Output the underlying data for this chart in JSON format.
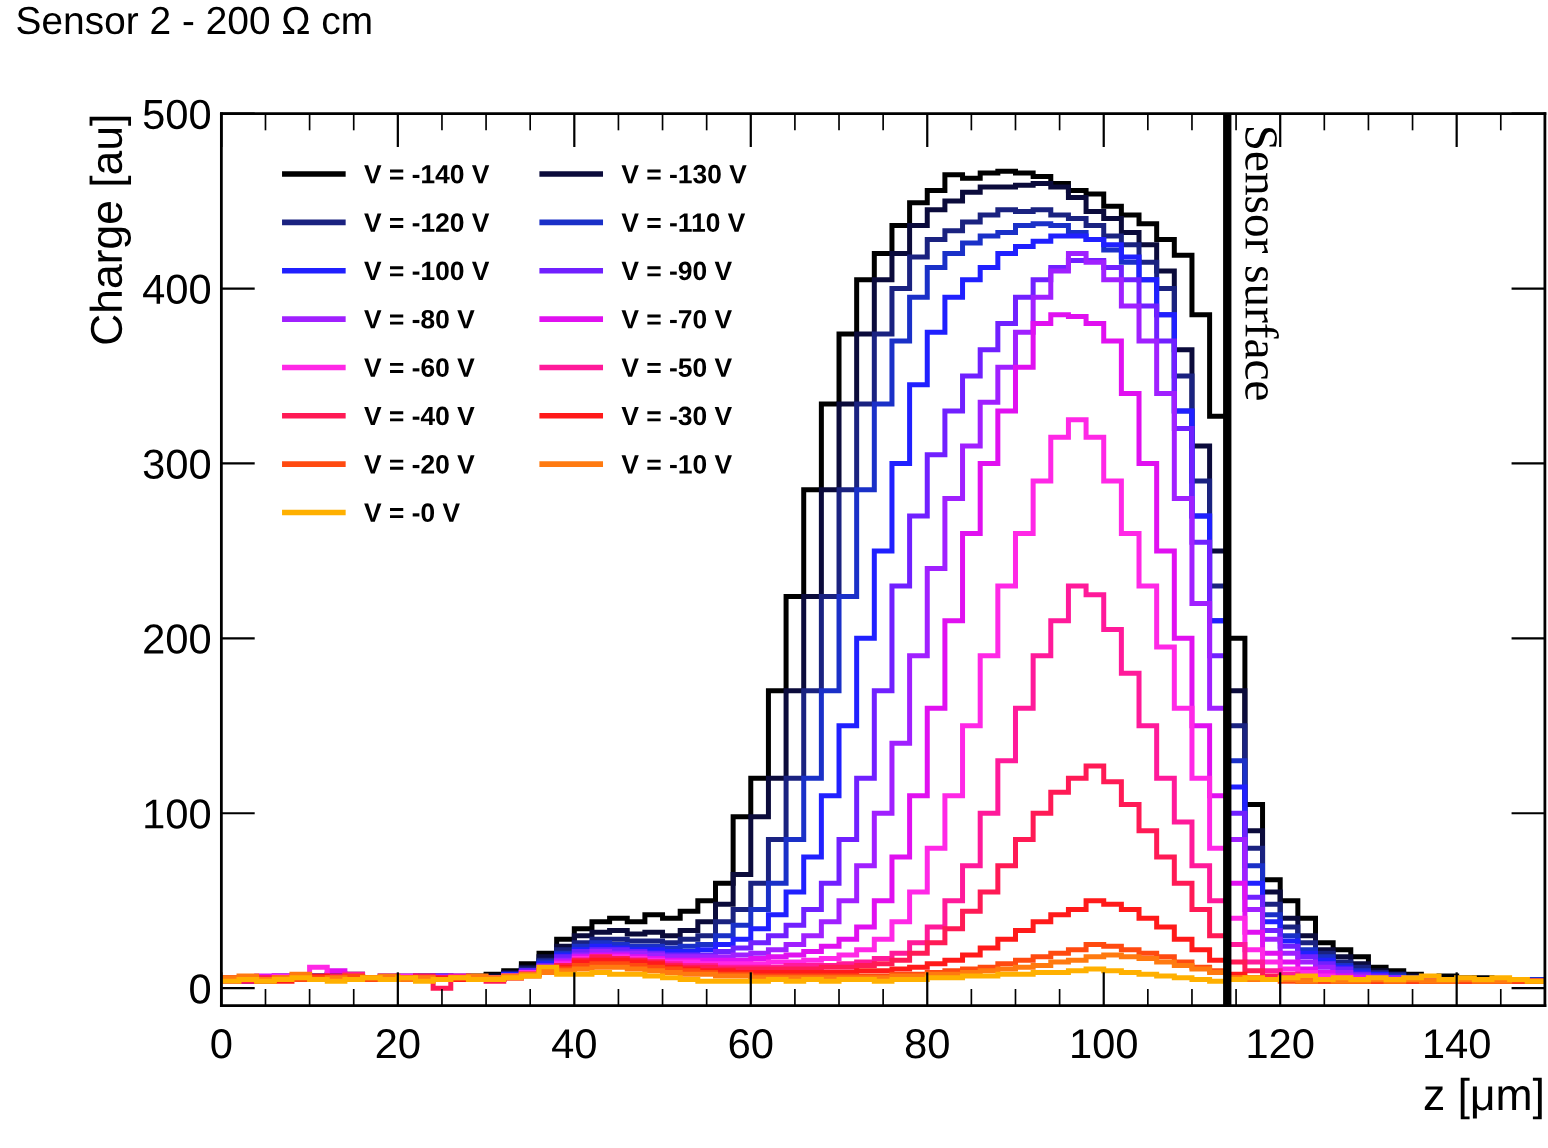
{
  "chart_data": {
    "type": "histogram",
    "title": "Sensor 2 - 200 Ω cm",
    "xlabel": "z [μm]",
    "ylabel": "Charge [au]",
    "bins": [
      0,
      2,
      4,
      6,
      8,
      10,
      12,
      14,
      16,
      18,
      20,
      22,
      24,
      26,
      28,
      30,
      32,
      34,
      36,
      38,
      40,
      42,
      44,
      46,
      48,
      50,
      52,
      54,
      56,
      58,
      60,
      62,
      64,
      66,
      68,
      70,
      72,
      74,
      76,
      78,
      80,
      82,
      84,
      86,
      88,
      90,
      92,
      94,
      96,
      98,
      100,
      102,
      104,
      106,
      108,
      110,
      112,
      114,
      116,
      118,
      120,
      122,
      124,
      126,
      128,
      130,
      132,
      134,
      136,
      138,
      140,
      142,
      144,
      146,
      148,
      150
    ],
    "xlim": [
      0,
      150
    ],
    "ylim": [
      -10,
      500
    ],
    "xticks": [
      0,
      20,
      40,
      60,
      80,
      100,
      120,
      140
    ],
    "yticks": [
      0,
      100,
      200,
      300,
      400,
      500
    ],
    "grid": false,
    "legend": "top left",
    "ref_lines": [
      {
        "axis": "x",
        "value": 114,
        "label": "Sensor surface",
        "color": "#000000"
      }
    ],
    "series": [
      {
        "name": "V = -140 V",
        "color": "#000000",
        "values": [
          4,
          5,
          6,
          5,
          7,
          6,
          8,
          7,
          6,
          5,
          6,
          7,
          5,
          6,
          7,
          8,
          10,
          14,
          20,
          28,
          34,
          38,
          40,
          38,
          42,
          40,
          44,
          50,
          60,
          98,
          120,
          170,
          224,
          285,
          334,
          374,
          405,
          420,
          436,
          449,
          456,
          465,
          463,
          466,
          467,
          466,
          464,
          460,
          456,
          454,
          447,
          442,
          437,
          428,
          419,
          385,
          327,
          200,
          105,
          62,
          50,
          40,
          26,
          22,
          18,
          12,
          10,
          8,
          6,
          7,
          5,
          6,
          4,
          5,
          4
        ]
      },
      {
        "name": "V = -130 V",
        "color": "#0b0b3b",
        "values": [
          5,
          4,
          6,
          6,
          5,
          7,
          6,
          8,
          5,
          6,
          5,
          6,
          7,
          5,
          6,
          7,
          9,
          12,
          18,
          24,
          30,
          32,
          33,
          31,
          32,
          30,
          33,
          38,
          48,
          65,
          98,
          120,
          170,
          224,
          285,
          334,
          374,
          405,
          420,
          436,
          445,
          450,
          455,
          458,
          458,
          459,
          460,
          458,
          452,
          444,
          440,
          432,
          425,
          410,
          365,
          310,
          250,
          170,
          90,
          55,
          40,
          30,
          22,
          18,
          14,
          10,
          8,
          7,
          6,
          5,
          6,
          4,
          5,
          4,
          5
        ]
      },
      {
        "name": "V = -120 V",
        "color": "#1a2280",
        "values": [
          4,
          6,
          5,
          7,
          5,
          6,
          7,
          6,
          6,
          5,
          7,
          5,
          6,
          6,
          5,
          6,
          8,
          11,
          16,
          22,
          26,
          28,
          28,
          27,
          27,
          26,
          28,
          30,
          38,
          45,
          60,
          85,
          120,
          170,
          224,
          285,
          334,
          374,
          400,
          418,
          428,
          433,
          438,
          442,
          445,
          444,
          445,
          442,
          440,
          436,
          430,
          425,
          415,
          400,
          350,
          290,
          230,
          150,
          80,
          48,
          35,
          26,
          20,
          15,
          12,
          9,
          8,
          6,
          6,
          5,
          5,
          4,
          5,
          4,
          4
        ]
      },
      {
        "name": "V = -110 V",
        "color": "#1a30c8",
        "values": [
          6,
          5,
          5,
          6,
          7,
          5,
          6,
          7,
          5,
          6,
          6,
          5,
          7,
          6,
          5,
          6,
          8,
          10,
          15,
          20,
          24,
          26,
          25,
          24,
          24,
          23,
          24,
          25,
          30,
          36,
          45,
          60,
          85,
          120,
          170,
          224,
          285,
          334,
          370,
          395,
          412,
          420,
          426,
          430,
          432,
          436,
          437,
          436,
          432,
          428,
          422,
          415,
          405,
          385,
          330,
          270,
          210,
          130,
          70,
          42,
          30,
          22,
          18,
          13,
          10,
          8,
          7,
          6,
          5,
          5,
          4,
          5,
          4,
          4,
          5
        ]
      },
      {
        "name": "V = -100 V",
        "color": "#2020ff",
        "values": [
          5,
          6,
          4,
          6,
          5,
          7,
          6,
          5,
          6,
          7,
          5,
          6,
          5,
          7,
          6,
          6,
          8,
          10,
          14,
          19,
          22,
          24,
          23,
          22,
          22,
          21,
          21,
          22,
          25,
          28,
          34,
          42,
          55,
          75,
          110,
          150,
          200,
          250,
          300,
          345,
          375,
          395,
          405,
          412,
          420,
          424,
          427,
          430,
          430,
          428,
          425,
          418,
          405,
          385,
          330,
          270,
          210,
          115,
          60,
          38,
          27,
          20,
          16,
          12,
          9,
          8,
          6,
          6,
          5,
          4,
          5,
          4,
          4,
          5,
          4
        ]
      },
      {
        "name": "V = -90 V",
        "color": "#7020ff",
        "values": [
          5,
          4,
          6,
          7,
          5,
          6,
          5,
          7,
          6,
          5,
          6,
          7,
          5,
          6,
          6,
          5,
          7,
          10,
          13,
          18,
          21,
          22,
          22,
          21,
          20,
          19,
          19,
          19,
          21,
          23,
          26,
          30,
          36,
          45,
          60,
          85,
          120,
          170,
          230,
          270,
          305,
          330,
          350,
          365,
          380,
          395,
          405,
          412,
          416,
          416,
          412,
          405,
          390,
          370,
          320,
          255,
          190,
          100,
          52,
          33,
          24,
          18,
          14,
          11,
          8,
          7,
          6,
          5,
          5,
          4,
          4,
          5,
          4,
          4,
          4
        ]
      },
      {
        "name": "V = -80 V",
        "color": "#a020ff",
        "values": [
          4,
          6,
          5,
          6,
          6,
          5,
          7,
          5,
          6,
          6,
          5,
          6,
          7,
          5,
          6,
          6,
          7,
          9,
          12,
          16,
          19,
          21,
          20,
          20,
          19,
          18,
          18,
          18,
          18,
          19,
          20,
          22,
          25,
          30,
          38,
          50,
          70,
          100,
          140,
          190,
          240,
          280,
          310,
          335,
          355,
          375,
          395,
          410,
          420,
          415,
          405,
          390,
          370,
          340,
          280,
          220,
          160,
          85,
          45,
          28,
          20,
          15,
          12,
          9,
          7,
          6,
          6,
          5,
          4,
          5,
          4,
          4,
          4,
          5,
          4
        ]
      },
      {
        "name": "V = -70 V",
        "color": "#e010f0",
        "values": [
          6,
          5,
          7,
          5,
          6,
          6,
          10,
          6,
          5,
          7,
          6,
          5,
          6,
          6,
          5,
          5,
          7,
          9,
          12,
          15,
          18,
          19,
          19,
          18,
          17,
          16,
          16,
          16,
          16,
          16,
          17,
          18,
          19,
          21,
          24,
          28,
          35,
          50,
          75,
          110,
          160,
          210,
          260,
          300,
          330,
          355,
          380,
          385,
          384,
          380,
          370,
          340,
          300,
          250,
          200,
          150,
          110,
          60,
          32,
          20,
          15,
          11,
          9,
          7,
          6,
          5,
          5,
          4,
          4,
          4,
          5,
          4,
          4,
          4,
          4
        ]
      },
      {
        "name": "V = -60 V",
        "color": "#ff28e6",
        "values": [
          5,
          6,
          5,
          7,
          6,
          12,
          6,
          5,
          6,
          6,
          7,
          5,
          6,
          5,
          6,
          6,
          7,
          9,
          11,
          14,
          17,
          18,
          18,
          17,
          16,
          15,
          15,
          14,
          14,
          14,
          14,
          15,
          15,
          16,
          17,
          19,
          22,
          28,
          38,
          55,
          80,
          110,
          150,
          190,
          230,
          260,
          290,
          315,
          325,
          315,
          290,
          260,
          230,
          195,
          160,
          120,
          80,
          40,
          22,
          15,
          11,
          9,
          7,
          6,
          5,
          5,
          4,
          4,
          4,
          5,
          4,
          4,
          4,
          4,
          4
        ]
      },
      {
        "name": "V = -50 V",
        "color": "#ff1a9a",
        "values": [
          4,
          5,
          6,
          5,
          7,
          6,
          5,
          8,
          6,
          5,
          6,
          6,
          5,
          7,
          5,
          5,
          6,
          8,
          10,
          13,
          16,
          17,
          17,
          16,
          15,
          14,
          13,
          13,
          12,
          12,
          12,
          12,
          13,
          13,
          13,
          14,
          15,
          17,
          20,
          26,
          35,
          50,
          70,
          100,
          130,
          160,
          190,
          210,
          230,
          225,
          205,
          180,
          150,
          120,
          95,
          70,
          50,
          25,
          15,
          10,
          8,
          6,
          5,
          5,
          4,
          4,
          4,
          4,
          4,
          4,
          4,
          4,
          4,
          4,
          4
        ]
      },
      {
        "name": "V = -40 V",
        "color": "#ff1a55",
        "values": [
          5,
          4,
          6,
          5,
          6,
          5,
          7,
          6,
          5,
          6,
          5,
          7,
          0,
          6,
          5,
          4,
          6,
          8,
          10,
          13,
          16,
          18,
          17,
          16,
          15,
          13,
          12,
          12,
          11,
          11,
          11,
          11,
          11,
          11,
          12,
          12,
          13,
          14,
          16,
          20,
          26,
          34,
          44,
          55,
          70,
          85,
          100,
          112,
          120,
          127,
          118,
          105,
          90,
          75,
          60,
          45,
          30,
          15,
          10,
          7,
          6,
          5,
          5,
          4,
          4,
          4,
          4,
          4,
          4,
          4,
          4,
          4,
          4,
          4,
          4
        ]
      },
      {
        "name": "V = -30 V",
        "color": "#ff1a1a",
        "values": [
          5,
          6,
          5,
          4,
          6,
          7,
          5,
          6,
          6,
          5,
          6,
          5,
          6,
          5,
          6,
          5,
          6,
          8,
          10,
          12,
          15,
          16,
          16,
          15,
          14,
          12,
          11,
          10,
          10,
          9,
          9,
          9,
          9,
          9,
          9,
          9,
          10,
          10,
          11,
          12,
          14,
          16,
          19,
          23,
          28,
          33,
          38,
          42,
          45,
          50,
          48,
          45,
          40,
          35,
          28,
          22,
          16,
          8,
          6,
          5,
          5,
          4,
          4,
          4,
          4,
          4,
          4,
          4,
          4,
          4,
          4,
          4,
          4,
          4,
          4
        ]
      },
      {
        "name": "V = -20 V",
        "color": "#ff4a10",
        "values": [
          6,
          5,
          4,
          6,
          5,
          6,
          5,
          7,
          5,
          6,
          5,
          6,
          5,
          6,
          5,
          5,
          6,
          7,
          9,
          11,
          13,
          14,
          14,
          13,
          12,
          11,
          10,
          9,
          8,
          8,
          7,
          7,
          7,
          7,
          7,
          7,
          7,
          7,
          8,
          8,
          9,
          10,
          11,
          12,
          14,
          16,
          18,
          20,
          22,
          25,
          24,
          22,
          20,
          18,
          15,
          12,
          10,
          6,
          5,
          5,
          4,
          4,
          4,
          4,
          4,
          4,
          4,
          4,
          4,
          4,
          4,
          4,
          4,
          4,
          4
        ]
      },
      {
        "name": "V = -10 V",
        "color": "#ff7a10",
        "values": [
          6,
          7,
          5,
          6,
          8,
          5,
          6,
          5,
          6,
          7,
          5,
          6,
          5,
          6,
          7,
          6,
          7,
          8,
          9,
          10,
          11,
          12,
          12,
          11,
          10,
          9,
          8,
          8,
          7,
          7,
          6,
          6,
          6,
          6,
          6,
          6,
          6,
          6,
          7,
          7,
          8,
          8,
          9,
          10,
          11,
          12,
          13,
          15,
          16,
          18,
          19,
          18,
          17,
          15,
          13,
          11,
          9,
          6,
          5,
          5,
          5,
          4,
          5,
          4,
          4,
          5,
          4,
          5,
          4,
          4,
          5,
          4,
          4,
          5,
          4
        ]
      },
      {
        "name": "V = -0 V",
        "color": "#ffb000",
        "values": [
          4,
          5,
          4,
          5,
          6,
          5,
          4,
          5,
          6,
          5,
          6,
          4,
          5,
          6,
          5,
          5,
          6,
          7,
          12,
          8,
          8,
          9,
          8,
          8,
          7,
          6,
          5,
          4,
          4,
          4,
          4,
          5,
          4,
          5,
          4,
          5,
          5,
          4,
          5,
          5,
          6,
          6,
          7,
          7,
          8,
          8,
          9,
          9,
          10,
          11,
          10,
          9,
          8,
          7,
          6,
          5,
          4,
          5,
          6,
          5,
          6,
          7,
          5,
          6,
          5,
          6,
          5,
          6,
          7,
          5,
          6,
          5,
          6,
          5,
          4
        ]
      }
    ]
  }
}
